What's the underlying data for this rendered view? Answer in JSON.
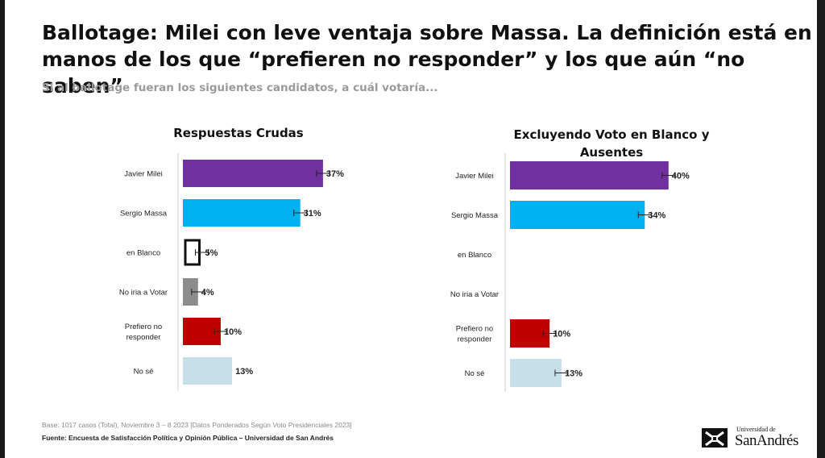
{
  "header": {
    "title": "Ballotage: Milei con leve ventaja sobre Massa. La definición está en manos de los que “prefieren no responder” y los que aún “no saben”",
    "subtitle": "Si al ballotage fueran los siguientes candidatos, a cuál votaría..."
  },
  "chart_data": [
    {
      "type": "bar",
      "orientation": "horizontal",
      "title": "Respuestas Crudas",
      "categories": [
        "Javier Milei",
        "Sergio Massa",
        "en Blanco",
        "No iria a Votar",
        "Prefiero no responder",
        "No sé"
      ],
      "values": [
        37,
        31,
        5,
        4,
        10,
        13
      ],
      "labels": [
        "37%",
        "31%",
        "5%",
        "4%",
        "10%",
        "13%"
      ],
      "error_bars": [
        true,
        true,
        true,
        true,
        true,
        false
      ],
      "colors": [
        "#7030a0",
        "#00b0f0",
        "#ffffff",
        "#8c8c8c",
        "#c00000",
        "#c7dfe9"
      ],
      "outlined": [
        false,
        false,
        true,
        false,
        false,
        false
      ],
      "xlim": [
        0,
        100
      ]
    },
    {
      "type": "bar",
      "orientation": "horizontal",
      "title": "Excluyendo Voto en Blanco y Ausentes",
      "categories": [
        "Javier Milei",
        "Sergio Massa",
        "en Blanco",
        "No iria a Votar",
        "Prefiero no responder",
        "No sé"
      ],
      "values": [
        40,
        34,
        0,
        0,
        10,
        13
      ],
      "labels": [
        "40%",
        "34%",
        "",
        "",
        "10%",
        "13%"
      ],
      "error_bars": [
        true,
        true,
        false,
        false,
        true,
        true
      ],
      "colors": [
        "#7030a0",
        "#00b0f0",
        "#ffffff",
        "#8c8c8c",
        "#c00000",
        "#c7dfe9"
      ],
      "outlined": [
        false,
        false,
        false,
        false,
        false,
        false
      ],
      "xlim": [
        0,
        100
      ]
    }
  ],
  "footer": {
    "base": "Base: 1017 casos (Total), Noviembre 3 – 8 2023 [Datos Ponderados Según Voto Presidenciales 2023]",
    "source": "Fuente: Encuesta de Satisfacción Política y Opinión Pública – Universidad de San Andrés"
  },
  "logo": {
    "small": "Universidad de",
    "big": "SanAndrés"
  }
}
